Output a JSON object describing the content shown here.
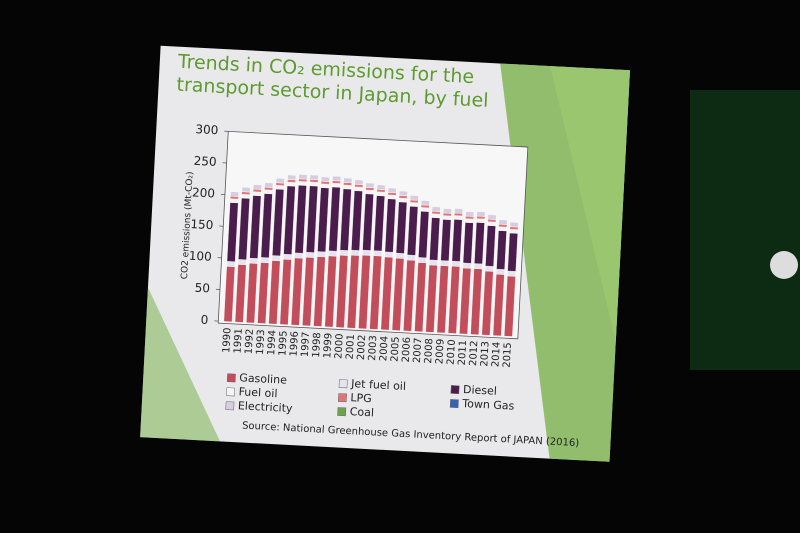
{
  "chart_data": {
    "type": "stacked_bar",
    "title": "Trends in CO₂ emissions for the transport sector in Japan, by fuel",
    "y_label": "CO2 emissions (Mt-CO₂)",
    "source": "Source: National Greenhouse Gas Inventory Report of JAPAN (2016)",
    "categories": [
      "1990",
      "1991",
      "1992",
      "1993",
      "1994",
      "1995",
      "1996",
      "1997",
      "1998",
      "1999",
      "2000",
      "2001",
      "2002",
      "2003",
      "2004",
      "2005",
      "2006",
      "2007",
      "2008",
      "2009",
      "2010",
      "2011",
      "2012",
      "2013",
      "2014",
      "2015"
    ],
    "series": [
      {
        "name": "Gasoline",
        "color": "#c24d5b",
        "values": [
          87,
          91,
          94,
          96,
          100,
          103,
          106,
          108,
          110,
          112,
          114,
          115,
          116,
          116,
          115,
          114,
          112,
          109,
          106,
          106,
          106,
          104,
          104,
          101,
          97,
          95
        ]
      },
      {
        "name": "Jet fuel oil",
        "color": "#e6e2ee",
        "values": [
          8,
          8,
          8,
          8,
          8,
          8,
          8,
          8,
          8,
          8,
          8,
          8,
          8,
          8,
          8,
          8,
          8,
          8,
          8,
          8,
          8,
          8,
          8,
          8,
          8,
          8
        ]
      },
      {
        "name": "Diesel",
        "color": "#4b1d4d",
        "values": [
          93,
          97,
          99,
          101,
          105,
          108,
          107,
          105,
          101,
          101,
          97,
          94,
          89,
          87,
          84,
          81,
          77,
          73,
          67,
          65,
          66,
          64,
          65,
          64,
          61,
          60
        ]
      },
      {
        "name": "Fuel oil",
        "color": "#f4f4f4",
        "values": [
          6,
          6,
          6,
          6,
          6,
          6,
          6,
          6,
          6,
          6,
          6,
          6,
          6,
          6,
          6,
          6,
          6,
          6,
          6,
          6,
          6,
          6,
          6,
          6,
          6,
          6
        ]
      },
      {
        "name": "LPG",
        "color": "#e07476",
        "values": [
          4,
          4,
          4,
          4,
          4,
          4,
          4,
          4,
          4,
          4,
          4,
          4,
          4,
          4,
          4,
          4,
          4,
          4,
          4,
          4,
          4,
          4,
          4,
          4,
          4,
          4
        ]
      },
      {
        "name": "Town Gas",
        "color": "#3563b3",
        "values": [
          0.1,
          0.1,
          0.1,
          0.1,
          0.1,
          0.1,
          0.1,
          0.1,
          0.1,
          0.1,
          0.1,
          0.1,
          0.1,
          0.1,
          0.1,
          0.1,
          0.1,
          0.1,
          0.1,
          0.1,
          0.1,
          0.1,
          0.1,
          0.1,
          0.1,
          0.1
        ]
      },
      {
        "name": "Electricity",
        "color": "#d6cde0",
        "values": [
          7,
          7,
          7,
          7,
          7,
          7,
          7,
          7,
          7,
          7,
          7,
          7,
          7,
          7,
          7,
          7,
          7,
          7,
          7,
          7,
          7,
          7,
          7,
          7,
          7,
          7
        ]
      },
      {
        "name": "Coal",
        "color": "#6f9f4f",
        "values": [
          0,
          0,
          0,
          0,
          0,
          0,
          0,
          0,
          0,
          0,
          0,
          0,
          0,
          0,
          0,
          0,
          0,
          0,
          0,
          0,
          0,
          0,
          0,
          0,
          0,
          0
        ]
      }
    ],
    "ylim": [
      0,
      300
    ],
    "yticks": [
      0,
      50,
      100,
      150,
      200,
      250,
      300
    ],
    "grid": false
  }
}
